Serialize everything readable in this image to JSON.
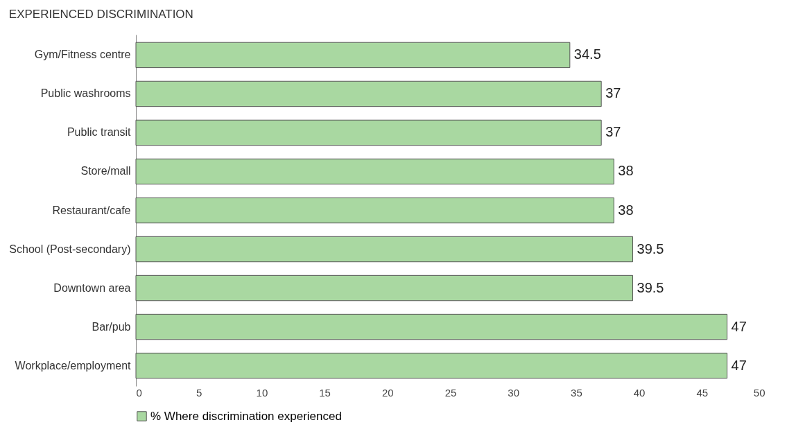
{
  "chart_data": {
    "type": "bar",
    "orientation": "horizontal",
    "title": "EXPERIENCED DISCRIMINATION",
    "categories": [
      "Gym/Fitness centre",
      "Public washrooms",
      "Public transit",
      "Store/mall",
      "Restaurant/cafe",
      "School (Post-secondary)",
      "Downtown area",
      "Bar/pub",
      "Workplace/employment"
    ],
    "series": [
      {
        "name": "% Where discrimination experienced",
        "color": "#a9d8a1",
        "values": [
          34.5,
          37,
          37,
          38,
          38,
          39.5,
          39.5,
          47,
          47
        ]
      }
    ],
    "xlim": [
      0,
      50
    ],
    "xticks": [
      0,
      5,
      10,
      15,
      20,
      25,
      30,
      35,
      40,
      45,
      50
    ],
    "data_labels": true,
    "grid": false,
    "legend": "bottom"
  }
}
